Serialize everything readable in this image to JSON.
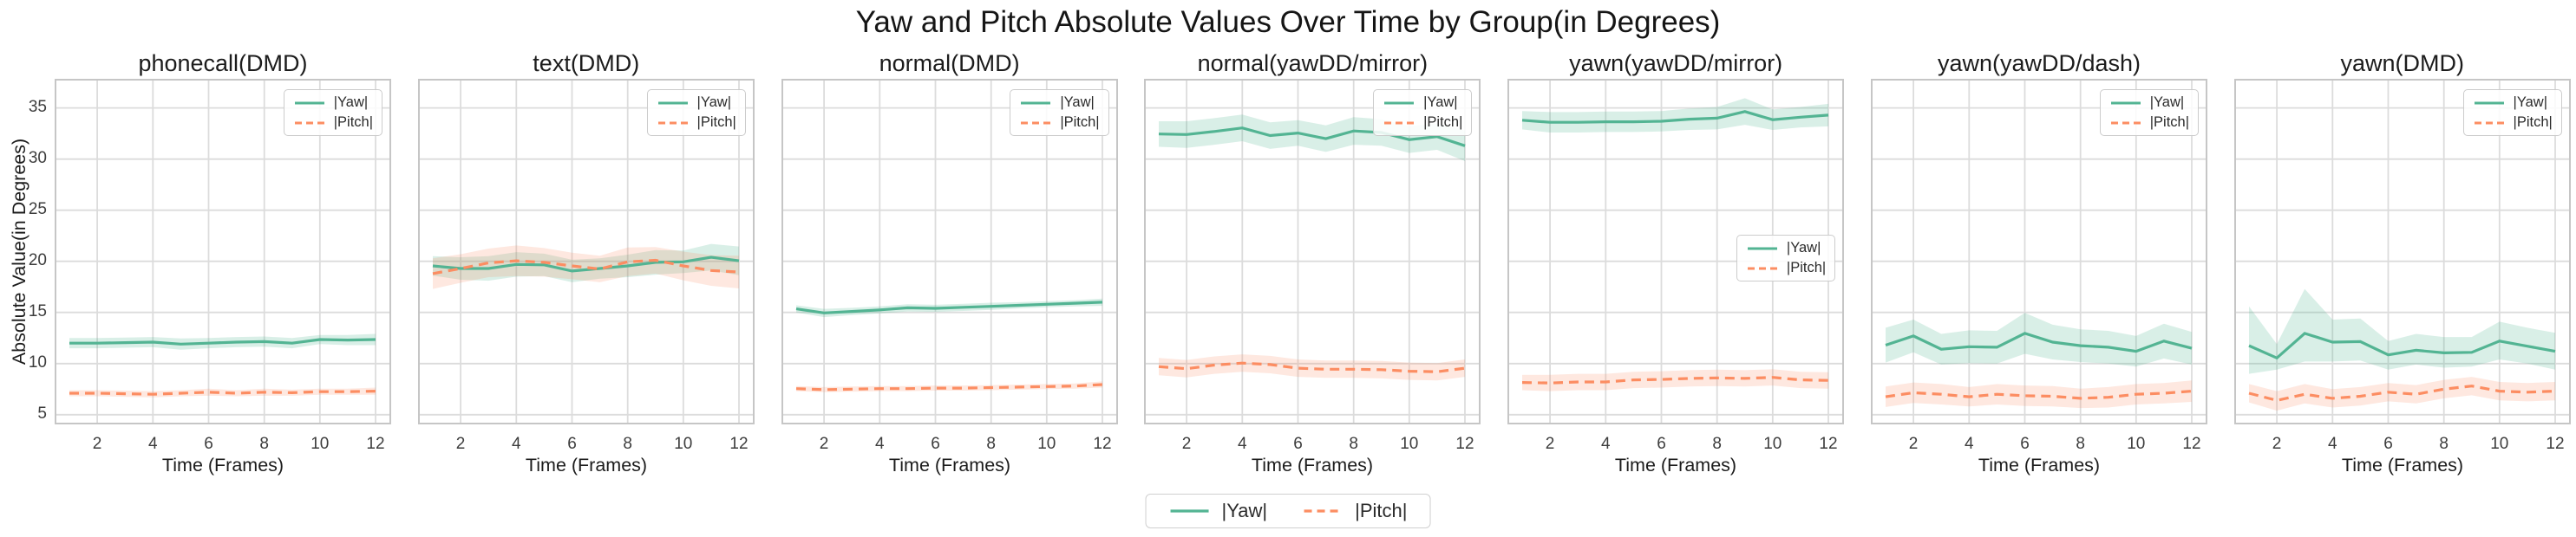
{
  "title": "Yaw and Pitch Absolute Values Over Time by Group(in Degrees)",
  "labels": {
    "xlabel": "Time (Frames)",
    "ylabel": "Absolute Value(in Degrees)"
  },
  "legend": {
    "yaw": "|Yaw|",
    "pitch": "|Pitch|"
  },
  "colors": {
    "yaw": "#53b493",
    "pitch": "#fc8d62",
    "grid": "#dcdcdc",
    "spine": "#c6c6c6",
    "tick_text": "#3d3d3d",
    "label_text": "#1c1c1c"
  },
  "axes": {
    "xticks": [
      2,
      4,
      6,
      8,
      10,
      12
    ],
    "yticks": [
      5,
      10,
      15,
      20,
      25,
      30,
      35
    ],
    "xlim": [
      0.47,
      12.56
    ],
    "ylim": [
      4.05,
      37.85
    ],
    "grid": true
  },
  "chart_data": [
    {
      "type": "line",
      "title": "phonecall(DMD)",
      "legend_loc": "upper right",
      "x": [
        1,
        2,
        3,
        4,
        5,
        6,
        7,
        8,
        9,
        10,
        11,
        12
      ],
      "series": [
        {
          "name": "|Yaw|",
          "style": "solid",
          "values": [
            12.0,
            12.0,
            12.05,
            12.1,
            11.9,
            12.0,
            12.1,
            12.15,
            12.0,
            12.35,
            12.3,
            12.35
          ],
          "lower": [
            11.5,
            11.5,
            11.55,
            11.6,
            11.35,
            11.5,
            11.6,
            11.65,
            11.5,
            11.9,
            11.8,
            11.8
          ],
          "upper": [
            12.5,
            12.5,
            12.55,
            12.6,
            12.45,
            12.5,
            12.6,
            12.65,
            12.5,
            12.8,
            12.8,
            12.9
          ]
        },
        {
          "name": "|Pitch|",
          "style": "dashed",
          "values": [
            7.1,
            7.1,
            7.05,
            7.0,
            7.1,
            7.2,
            7.1,
            7.2,
            7.15,
            7.25,
            7.25,
            7.3
          ],
          "lower": [
            6.8,
            6.8,
            6.75,
            6.7,
            6.8,
            6.85,
            6.8,
            6.85,
            6.85,
            6.95,
            6.95,
            6.95
          ],
          "upper": [
            7.4,
            7.4,
            7.35,
            7.3,
            7.4,
            7.55,
            7.4,
            7.55,
            7.45,
            7.55,
            7.55,
            7.65
          ]
        }
      ]
    },
    {
      "type": "line",
      "title": "text(DMD)",
      "legend_loc": "upper right",
      "x": [
        1,
        2,
        3,
        4,
        5,
        6,
        7,
        8,
        9,
        10,
        11,
        12
      ],
      "series": [
        {
          "name": "|Yaw|",
          "style": "solid",
          "values": [
            19.55,
            19.3,
            19.3,
            19.7,
            19.65,
            19.05,
            19.3,
            19.55,
            19.9,
            19.95,
            20.4,
            20.05
          ],
          "lower": [
            18.6,
            18.2,
            18.1,
            18.5,
            18.55,
            17.95,
            18.3,
            18.45,
            18.7,
            18.85,
            19.1,
            18.65
          ],
          "upper": [
            20.5,
            20.4,
            20.5,
            20.9,
            20.75,
            20.15,
            20.3,
            20.65,
            21.1,
            21.05,
            21.7,
            21.45
          ]
        },
        {
          "name": "|Pitch|",
          "style": "dashed",
          "values": [
            18.8,
            19.3,
            19.85,
            20.05,
            19.9,
            19.55,
            19.25,
            19.95,
            20.1,
            19.55,
            19.1,
            18.95
          ],
          "lower": [
            17.3,
            17.9,
            18.45,
            18.55,
            18.5,
            18.25,
            17.95,
            18.55,
            18.8,
            18.15,
            17.6,
            17.35
          ],
          "upper": [
            20.3,
            20.7,
            21.25,
            21.55,
            21.3,
            20.85,
            20.55,
            21.35,
            21.4,
            20.95,
            20.6,
            20.55
          ]
        }
      ]
    },
    {
      "type": "line",
      "title": "normal(DMD)",
      "legend_loc": "upper right",
      "x": [
        1,
        2,
        3,
        4,
        5,
        6,
        7,
        8,
        9,
        10,
        11,
        12
      ],
      "series": [
        {
          "name": "|Yaw|",
          "style": "solid",
          "values": [
            15.35,
            14.95,
            15.1,
            15.25,
            15.45,
            15.4,
            15.5,
            15.6,
            15.7,
            15.8,
            15.9,
            16.0
          ],
          "lower": [
            15.0,
            14.55,
            14.75,
            14.9,
            15.1,
            15.05,
            15.15,
            15.25,
            15.4,
            15.5,
            15.6,
            15.65
          ],
          "upper": [
            15.7,
            15.35,
            15.45,
            15.6,
            15.8,
            15.75,
            15.85,
            15.95,
            16.0,
            16.1,
            16.2,
            16.35
          ]
        },
        {
          "name": "|Pitch|",
          "style": "dashed",
          "values": [
            7.55,
            7.45,
            7.5,
            7.55,
            7.55,
            7.6,
            7.6,
            7.65,
            7.7,
            7.75,
            7.8,
            7.95
          ],
          "lower": [
            7.3,
            7.2,
            7.25,
            7.3,
            7.3,
            7.35,
            7.35,
            7.4,
            7.45,
            7.5,
            7.55,
            7.65
          ],
          "upper": [
            7.8,
            7.7,
            7.75,
            7.8,
            7.8,
            7.85,
            7.85,
            7.9,
            7.95,
            8.0,
            8.05,
            8.25
          ]
        }
      ]
    },
    {
      "type": "line",
      "title": "normal(yawDD/mirror)",
      "legend_loc": "upper right",
      "x": [
        1,
        2,
        3,
        4,
        5,
        6,
        7,
        8,
        9,
        10,
        11,
        12
      ],
      "series": [
        {
          "name": "|Yaw|",
          "style": "solid",
          "values": [
            32.45,
            32.4,
            32.7,
            33.05,
            32.3,
            32.55,
            32.0,
            32.75,
            32.6,
            31.9,
            32.2,
            31.3
          ],
          "lower": [
            31.2,
            31.1,
            31.4,
            31.75,
            31.0,
            31.3,
            30.7,
            31.4,
            31.3,
            30.6,
            30.9,
            29.8
          ],
          "upper": [
            33.7,
            33.7,
            34.0,
            34.35,
            33.6,
            33.8,
            33.3,
            34.1,
            33.9,
            33.2,
            33.5,
            32.8
          ]
        },
        {
          "name": "|Pitch|",
          "style": "dashed",
          "values": [
            9.7,
            9.5,
            9.85,
            10.05,
            9.9,
            9.55,
            9.45,
            9.45,
            9.4,
            9.25,
            9.2,
            9.55
          ],
          "lower": [
            8.85,
            8.65,
            9.0,
            9.2,
            9.05,
            8.7,
            8.6,
            8.6,
            8.55,
            8.4,
            8.35,
            8.7
          ],
          "upper": [
            10.55,
            10.35,
            10.7,
            10.9,
            10.75,
            10.4,
            10.3,
            10.3,
            10.25,
            10.1,
            10.05,
            10.4
          ]
        }
      ]
    },
    {
      "type": "line",
      "title": "yawn(yawDD/mirror)",
      "legend_loc": "center right",
      "x": [
        1,
        2,
        3,
        4,
        5,
        6,
        7,
        8,
        9,
        10,
        11,
        12
      ],
      "series": [
        {
          "name": "|Yaw|",
          "style": "solid",
          "values": [
            33.8,
            33.6,
            33.6,
            33.65,
            33.65,
            33.7,
            33.9,
            34.0,
            34.65,
            33.85,
            34.1,
            34.3
          ],
          "lower": [
            32.9,
            32.6,
            32.6,
            32.65,
            32.65,
            32.7,
            32.85,
            32.9,
            33.35,
            32.85,
            33.1,
            33.2
          ],
          "upper": [
            34.7,
            34.6,
            34.6,
            34.65,
            34.65,
            34.7,
            34.95,
            35.1,
            35.95,
            34.85,
            35.1,
            35.4
          ]
        },
        {
          "name": "|Pitch|",
          "style": "dashed",
          "values": [
            8.15,
            8.1,
            8.2,
            8.2,
            8.4,
            8.45,
            8.55,
            8.6,
            8.55,
            8.65,
            8.4,
            8.35
          ],
          "lower": [
            7.4,
            7.3,
            7.4,
            7.4,
            7.6,
            7.65,
            7.75,
            7.8,
            7.75,
            7.85,
            7.6,
            7.55
          ],
          "upper": [
            8.9,
            8.9,
            9.0,
            9.0,
            9.2,
            9.25,
            9.35,
            9.4,
            9.35,
            9.45,
            9.2,
            9.15
          ]
        }
      ]
    },
    {
      "type": "line",
      "title": "yawn(yawDD/dash)",
      "legend_loc": "upper right",
      "x": [
        1,
        2,
        3,
        4,
        5,
        6,
        7,
        8,
        9,
        10,
        11,
        12
      ],
      "series": [
        {
          "name": "|Yaw|",
          "style": "solid",
          "values": [
            11.8,
            12.7,
            11.4,
            11.65,
            11.6,
            12.95,
            12.1,
            11.75,
            11.6,
            11.2,
            12.2,
            11.5
          ],
          "lower": [
            10.1,
            11.1,
            9.9,
            10.05,
            10.0,
            10.95,
            10.4,
            10.15,
            10.0,
            9.7,
            10.5,
            9.9
          ],
          "upper": [
            13.5,
            14.3,
            12.9,
            13.25,
            13.2,
            14.95,
            13.8,
            13.35,
            13.2,
            12.7,
            13.9,
            13.1
          ]
        },
        {
          "name": "|Pitch|",
          "style": "dashed",
          "values": [
            6.75,
            7.15,
            7.0,
            6.75,
            7.0,
            6.85,
            6.8,
            6.6,
            6.7,
            7.0,
            7.1,
            7.3
          ],
          "lower": [
            5.75,
            6.15,
            6.0,
            5.8,
            6.0,
            5.85,
            5.8,
            5.65,
            5.7,
            6.0,
            6.1,
            6.25
          ],
          "upper": [
            7.75,
            8.15,
            8.0,
            7.7,
            8.0,
            7.85,
            7.8,
            7.55,
            7.7,
            8.0,
            8.1,
            8.35
          ]
        }
      ]
    },
    {
      "type": "line",
      "title": "yawn(DMD)",
      "legend_loc": "upper right",
      "x": [
        1,
        2,
        3,
        4,
        5,
        6,
        7,
        8,
        9,
        10,
        11,
        12
      ],
      "series": [
        {
          "name": "|Yaw|",
          "style": "solid",
          "values": [
            11.75,
            10.55,
            12.95,
            12.1,
            12.15,
            10.85,
            11.3,
            11.05,
            11.1,
            12.2,
            11.7,
            11.2
          ],
          "lower": [
            9.0,
            9.4,
            10.2,
            10.2,
            10.3,
            9.4,
            9.9,
            9.6,
            9.7,
            10.4,
            10.0,
            9.4
          ],
          "upper": [
            15.6,
            11.9,
            17.3,
            14.3,
            14.4,
            12.2,
            12.9,
            12.6,
            12.6,
            14.1,
            13.5,
            13.0
          ]
        },
        {
          "name": "|Pitch|",
          "style": "dashed",
          "values": [
            7.1,
            6.4,
            7.0,
            6.6,
            6.8,
            7.2,
            7.0,
            7.5,
            7.8,
            7.3,
            7.2,
            7.3
          ],
          "lower": [
            6.2,
            5.4,
            6.1,
            5.7,
            5.9,
            6.3,
            6.1,
            6.6,
            6.9,
            6.4,
            6.3,
            6.4
          ],
          "upper": [
            8.0,
            7.3,
            8.0,
            7.5,
            7.7,
            8.1,
            7.9,
            8.4,
            8.7,
            8.2,
            8.1,
            8.2
          ]
        }
      ]
    }
  ]
}
